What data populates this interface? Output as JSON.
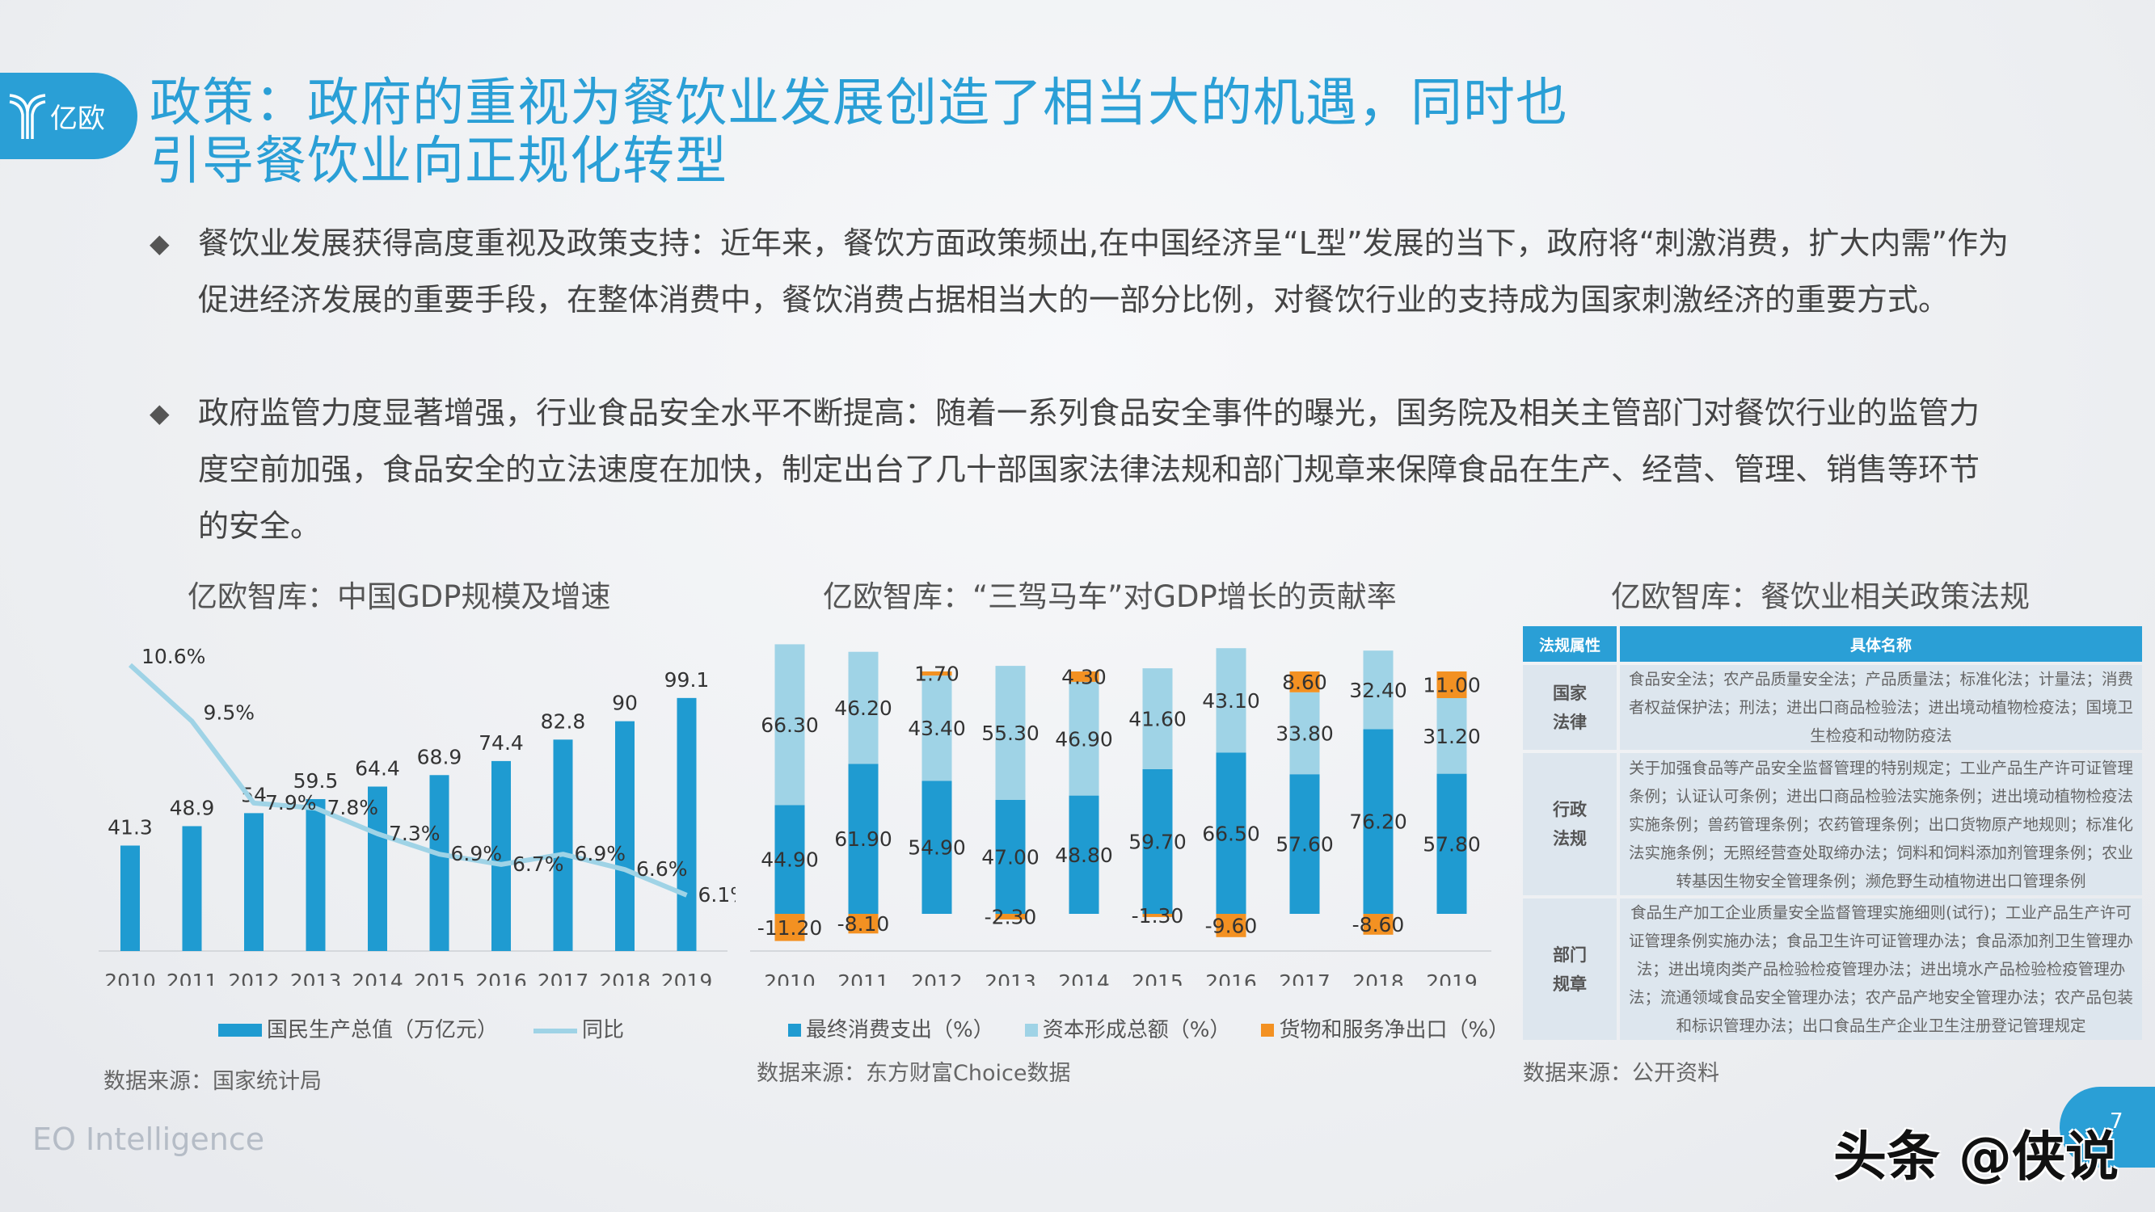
{
  "brand": {
    "logo_text": "亿欧",
    "color": "#2a9fd6"
  },
  "title": {
    "line1": "政策：政府的重视为餐饮业发展创造了相当大的机遇，同时也",
    "line2": "引导餐饮业向正规化转型"
  },
  "bullets": [
    {
      "text": "餐饮业发展获得高度重视及政策支持：近年来，餐饮方面政策频出,在中国经济呈“L型”发展的当下，政府将“刺激消费，扩大内需”作为促进经济发展的重要手段，在整体消费中，餐饮消费占据相当大的一部分比例，对餐饮行业的支持成为国家刺激经济的重要方式。"
    },
    {
      "text": "政府监管力度显著增强，行业食品安全水平不断提高：随着一系列食品安全事件的曝光，国务院及相关主管部门对餐饮行业的监管力度空前加强，食品安全的立法速度在加快，制定出台了几十部国家法律法规和部门规章来保障食品在生产、经营、管理、销售等环节的安全。"
    }
  ],
  "chart_data": [
    {
      "type": "bar",
      "title": "亿欧智库：中国GDP规模及增速",
      "categories": [
        "2010",
        "2011",
        "2012",
        "2013",
        "2014",
        "2015",
        "2016",
        "2017",
        "2018",
        "2019"
      ],
      "series": [
        {
          "name": "国民生产总值（万亿元）",
          "type": "bar",
          "values": [
            41.3,
            48.9,
            54,
            59.5,
            64.4,
            68.9,
            74.4,
            82.8,
            90,
            99.1
          ],
          "labels": [
            "41.3",
            "48.9",
            "54",
            "59.5",
            "64.4",
            "68.9",
            "74.4",
            "82.8",
            "90",
            "99.1"
          ],
          "color": "#1f9bd1"
        },
        {
          "name": "同比",
          "type": "line",
          "values": [
            10.6,
            9.5,
            7.9,
            7.8,
            7.3,
            6.9,
            6.7,
            6.9,
            6.6,
            6.1
          ],
          "labels": [
            "10.6%",
            "9.5%",
            "7.9%",
            "7.8%",
            "7.3%",
            "6.9%",
            "6.7%",
            "6.9%",
            "6.6%",
            "6.1%"
          ],
          "color": "#9fd3e6"
        }
      ],
      "legend": "bottom",
      "source": "数据来源：国家统计局"
    },
    {
      "type": "bar",
      "stacked": true,
      "title": "亿欧智库：“三驾马车”对GDP增长的贡献率",
      "categories": [
        "2010",
        "2011",
        "2012",
        "2013",
        "2014",
        "2015",
        "2016",
        "2017",
        "2018",
        "2019"
      ],
      "series": [
        {
          "name": "最终消费支出（%）",
          "values": [
            44.9,
            61.9,
            54.9,
            47.0,
            48.8,
            59.7,
            66.5,
            57.6,
            76.2,
            57.8
          ],
          "labels": [
            "44.90",
            "61.90",
            "54.90",
            "47.00",
            "48.80",
            "59.70",
            "66.50",
            "57.60",
            "76.20",
            "57.80"
          ],
          "color": "#1f9bd1"
        },
        {
          "name": "资本形成总额（%）",
          "values": [
            66.3,
            46.2,
            43.4,
            55.3,
            46.9,
            41.6,
            43.1,
            33.8,
            32.4,
            31.2
          ],
          "labels": [
            "66.30",
            "46.20",
            "43.40",
            "55.30",
            "46.90",
            "41.60",
            "43.10",
            "33.80",
            "32.40",
            "31.20"
          ],
          "color": "#9fd3e6"
        },
        {
          "name": "货物和服务净出口（%）",
          "values": [
            -11.2,
            -8.1,
            1.7,
            -2.3,
            4.3,
            -1.3,
            -9.6,
            8.6,
            -8.6,
            11.0
          ],
          "labels": [
            "-11.20",
            "-8.10",
            "1.70",
            "-2.30",
            "4.30",
            "-1.30",
            "-9.60",
            "8.60",
            "-8.60",
            "11.00"
          ],
          "color": "#f39122"
        }
      ],
      "legend": "bottom",
      "source": "数据来源：东方财富Choice数据"
    }
  ],
  "policy_table": {
    "title": "亿欧智库：餐饮业相关政策法规",
    "headers": [
      "法规属性",
      "具体名称"
    ],
    "rows": [
      {
        "category": "国家\n法律",
        "content": "食品安全法；农产品质量安全法；产品质量法；标准化法；计量法；消费者权益保护法；刑法；进出口商品检验法；进出境动植物检疫法；国境卫生检疫和动物防疫法"
      },
      {
        "category": "行政\n法规",
        "content": "关于加强食品等产品安全监督管理的特别规定；工业产品生产许可证管理条例；认证认可条例；进出口商品检验法实施条例；进出境动植物检疫法实施条例；兽药管理条例；农药管理条例；出口货物原产地规则；标准化法实施条例；无照经营查处取缔办法；饲料和饲料添加剂管理条例；农业转基因生物安全管理条例；濒危野生动植物进出口管理条例"
      },
      {
        "category": "部门\n规章",
        "content": "食品生产加工企业质量安全监督管理实施细则(试行)；工业产品生产许可证管理条例实施办法；食品卫生许可证管理办法；食品添加剂卫生管理办法；进出境肉类产品检验检疫管理办法；进出境水产品检验检疫管理办法；流通领域食品安全管理办法；农产品产地安全管理办法；农产品包装和标识管理办法；出口食品生产企业卫生注册登记管理规定"
      }
    ],
    "source": "数据来源：公开资料"
  },
  "footer": {
    "brand": "EO Intelligence",
    "page": "7"
  },
  "watermark": "头条 @侠说"
}
